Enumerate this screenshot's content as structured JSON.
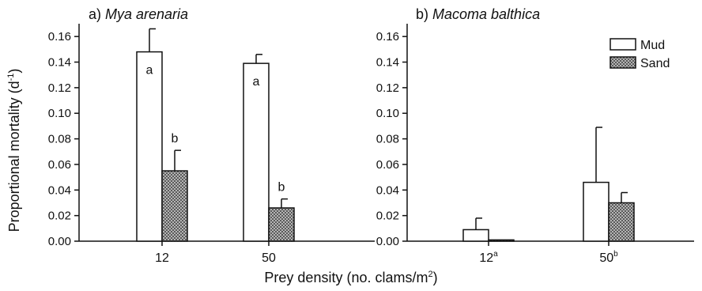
{
  "figure": {
    "ylabel_main": "Proportional mortality (d",
    "ylabel_sup": "-1",
    "ylabel_close": ")",
    "xlabel_main": "Prey density (no. clams/m",
    "xlabel_sup": "2",
    "xlabel_close": ")"
  },
  "legend": {
    "mud": "Mud",
    "sand": "Sand",
    "position": "top-right of panel b"
  },
  "colors": {
    "mud_fill": "#ffffff",
    "sand_fill": "#9a9a9a",
    "stroke": "#111111"
  },
  "chart_data": [
    {
      "type": "bar",
      "panel_prefix": "a)",
      "title": "Mya arenaria",
      "categories": [
        "12",
        "50"
      ],
      "category_sups": [
        "",
        ""
      ],
      "ylim": [
        0,
        0.17
      ],
      "yticks": [
        "0.00",
        "0.02",
        "0.04",
        "0.06",
        "0.08",
        "0.10",
        "0.12",
        "0.14",
        "0.16"
      ],
      "series": [
        {
          "name": "Mud",
          "values": [
            0.148,
            0.139
          ],
          "errors": [
            0.018,
            0.007
          ],
          "labels": [
            "a",
            "a"
          ]
        },
        {
          "name": "Sand",
          "values": [
            0.055,
            0.026
          ],
          "errors": [
            0.016,
            0.007
          ],
          "labels": [
            "b",
            "b"
          ]
        }
      ]
    },
    {
      "type": "bar",
      "panel_prefix": "b)",
      "title": "Macoma balthica",
      "categories": [
        "12",
        "50"
      ],
      "category_sups": [
        "a",
        "b"
      ],
      "ylim": [
        0,
        0.17
      ],
      "yticks": [
        "0.00",
        "0.02",
        "0.04",
        "0.06",
        "0.08",
        "0.10",
        "0.12",
        "0.14",
        "0.16"
      ],
      "series": [
        {
          "name": "Mud",
          "values": [
            0.009,
            0.046
          ],
          "errors": [
            0.009,
            0.043
          ],
          "labels": [
            "",
            ""
          ]
        },
        {
          "name": "Sand",
          "values": [
            0.001,
            0.03
          ],
          "errors": [
            0.0,
            0.008
          ],
          "labels": [
            "",
            ""
          ]
        }
      ]
    }
  ]
}
